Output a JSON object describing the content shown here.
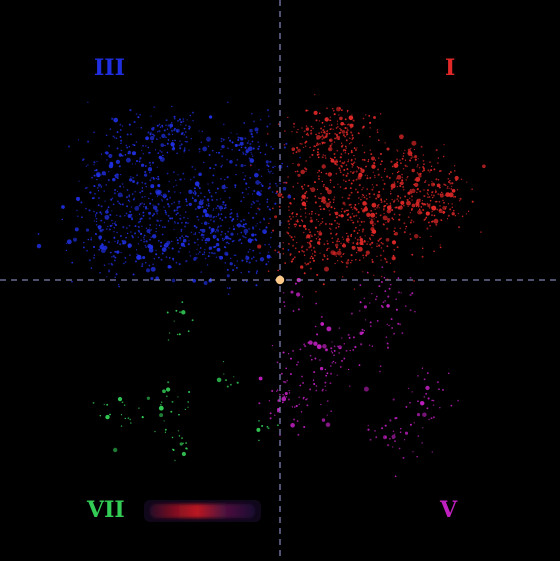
{
  "quadrant_labels": {
    "top_left": "III",
    "top_right": "I",
    "bottom_left": "VII",
    "bottom_right": "V"
  },
  "colors": {
    "background": "#000000",
    "axis_lines": "#7d7fb0",
    "origin_marker": "#ffc98a",
    "quadrant_III": "#1f2fe0",
    "quadrant_I": "#e02828",
    "quadrant_VII": "#33cc55",
    "quadrant_V": "#c020c0"
  },
  "clusters": [
    {
      "group": "III",
      "color": "#1f2fe0",
      "density": 1.0
    },
    {
      "group": "I",
      "color": "#e02828",
      "density": 1.0
    },
    {
      "group": "V",
      "color": "#c020c0",
      "density": 0.55
    },
    {
      "group": "VII",
      "color": "#33cc55",
      "density": 0.35
    }
  ],
  "legend_thumbnail": {
    "colors": [
      "#6a0f1a",
      "#d42020",
      "#3a0f55"
    ]
  }
}
